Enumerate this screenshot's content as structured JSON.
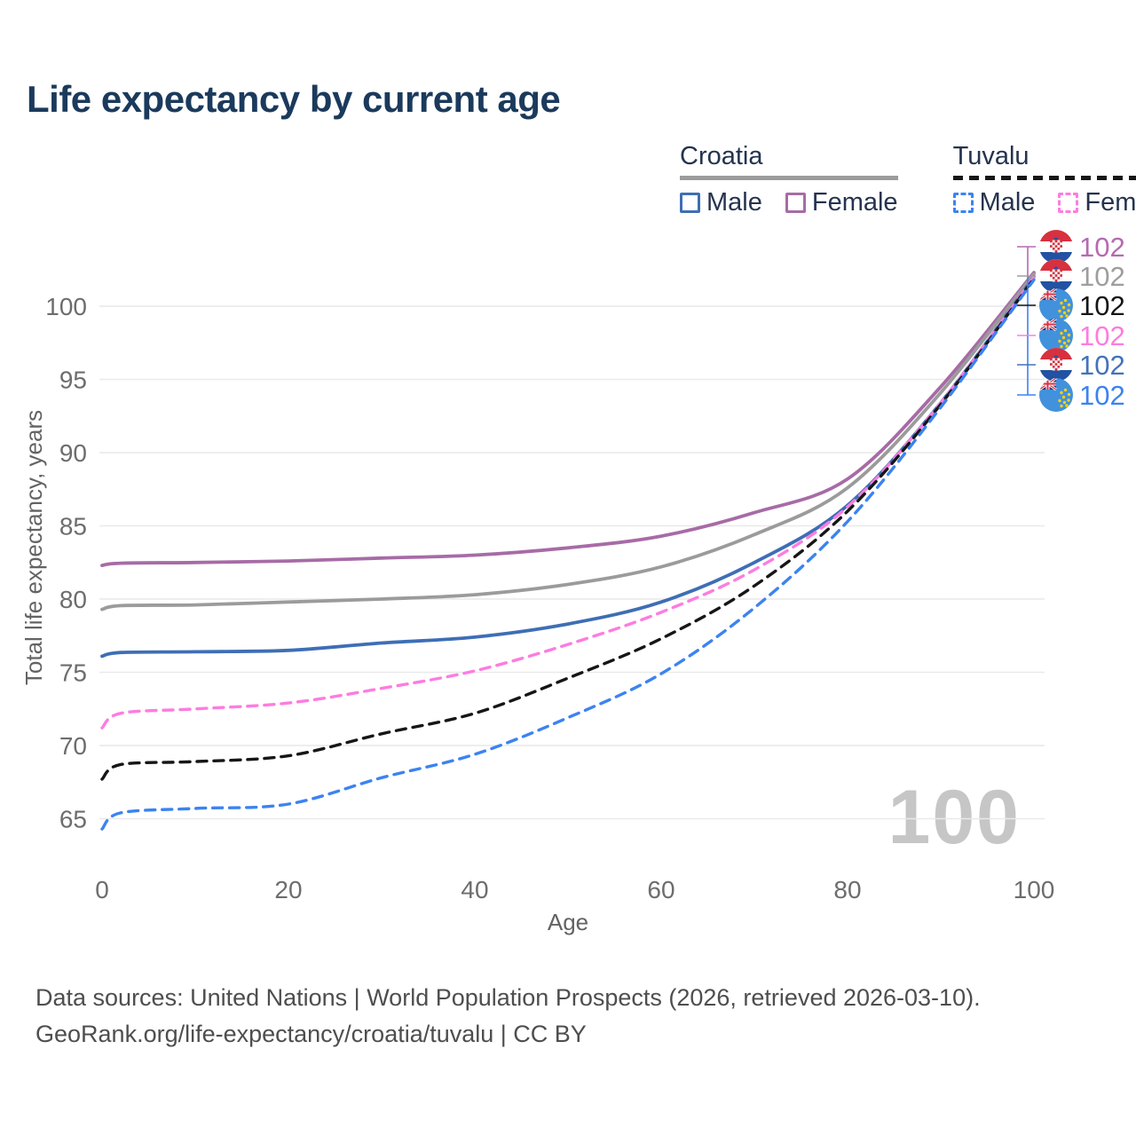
{
  "title": "Life expectancy by current age",
  "legend": {
    "croatia": {
      "label": "Croatia",
      "male": "Male",
      "female": "Female"
    },
    "tuvalu": {
      "label": "Tuvalu",
      "male": "Male",
      "female": "Female"
    }
  },
  "watermark_age_frame": "100",
  "footer": {
    "line1": "Data sources: United Nations | World Population Prospects (2026, retrieved 2026-03-10).",
    "line2": "GeoRank.org/life-expectancy/croatia/tuvalu | CC BY"
  },
  "chart_data": {
    "type": "line",
    "title": "Life expectancy by current age",
    "xlabel": "Age",
    "ylabel": "Total life expectancy, years",
    "x": [
      0,
      2,
      10,
      20,
      30,
      40,
      50,
      60,
      70,
      80,
      90,
      100
    ],
    "x_ticks": [
      0,
      20,
      40,
      60,
      80,
      100
    ],
    "y_ticks": [
      65,
      70,
      75,
      80,
      85,
      90,
      95,
      100
    ],
    "xlim": [
      0,
      100
    ],
    "ylim": [
      63,
      103
    ],
    "grid": "horizontal-only",
    "legend_position": "top-right",
    "series": [
      {
        "name": "Croatia Female",
        "country": "Croatia",
        "sex": "Female",
        "style": "solid",
        "color": "#a76ba6",
        "values": [
          82.3,
          82.45,
          82.5,
          82.6,
          82.8,
          83.0,
          83.5,
          84.3,
          85.9,
          88.2,
          94.5,
          102.3
        ],
        "end_label": "102"
      },
      {
        "name": "Croatia (both sexes)",
        "country": "Croatia",
        "sex": "Both",
        "style": "solid",
        "color": "#9b9b9b",
        "values": [
          79.3,
          79.55,
          79.6,
          79.8,
          80.0,
          80.3,
          81.0,
          82.2,
          84.4,
          87.6,
          94.1,
          102.2
        ],
        "end_label": "102"
      },
      {
        "name": "Croatia Male",
        "country": "Croatia",
        "sex": "Male",
        "style": "solid",
        "color": "#3e6eb5",
        "values": [
          76.1,
          76.35,
          76.4,
          76.5,
          77.0,
          77.4,
          78.3,
          79.8,
          82.5,
          86.4,
          93.4,
          102.0
        ],
        "end_label": "102"
      },
      {
        "name": "Tuvalu Female",
        "country": "Tuvalu",
        "sex": "Female",
        "style": "dashed",
        "color": "#fd7ce0",
        "values": [
          71.2,
          72.2,
          72.5,
          72.9,
          73.9,
          75.1,
          76.9,
          79.1,
          82.0,
          86.3,
          93.4,
          102.0
        ],
        "end_label": "102"
      },
      {
        "name": "Tuvalu (both sexes)",
        "country": "Tuvalu",
        "sex": "Both",
        "style": "dashed",
        "color": "#161616",
        "values": [
          67.7,
          68.7,
          68.9,
          69.3,
          70.8,
          72.2,
          74.6,
          77.3,
          80.9,
          86.0,
          93.3,
          101.9
        ],
        "end_label": "102"
      },
      {
        "name": "Tuvalu Male",
        "country": "Tuvalu",
        "sex": "Male",
        "style": "dashed",
        "color": "#3c83f1",
        "values": [
          64.3,
          65.4,
          65.7,
          66.0,
          67.8,
          69.4,
          71.9,
          74.9,
          79.4,
          85.3,
          93.1,
          101.8
        ],
        "end_label": "102"
      }
    ]
  },
  "right_labels": [
    {
      "flag": "croatia",
      "series": "Croatia Female",
      "value": "102",
      "color": "#b56ab2"
    },
    {
      "flag": "croatia",
      "series": "Croatia (both sexes)",
      "value": "102",
      "color": "#9e9e9e"
    },
    {
      "flag": "tuvalu",
      "series": "Tuvalu (both sexes)",
      "value": "102",
      "color": "#161616"
    },
    {
      "flag": "tuvalu",
      "series": "Tuvalu Female",
      "value": "102",
      "color": "#fd7ce0"
    },
    {
      "flag": "croatia",
      "series": "Croatia Male",
      "value": "102",
      "color": "#4273bb"
    },
    {
      "flag": "tuvalu",
      "series": "Tuvalu Male",
      "value": "102",
      "color": "#3c83f1"
    }
  ],
  "colors": {
    "title": "#1b3a5c",
    "grid": "#e9e9e9",
    "tick_text": "#6d6d6d",
    "watermark": "#c6c6c6",
    "footer_text": "#4e4e4e"
  }
}
